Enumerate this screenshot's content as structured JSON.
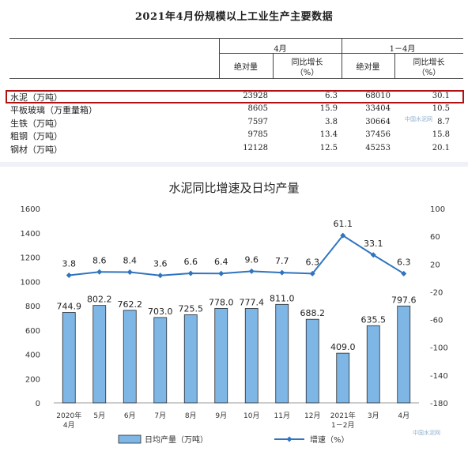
{
  "table": {
    "title": "2021年4月份规模以上工业生产主要数据",
    "group1": "4月",
    "group2": "1－4月",
    "col_abs": "绝对量",
    "col_yoy": "同比增长",
    "col_yoy_unit": "（%）",
    "rows": [
      {
        "name": "水泥（万吨）",
        "abs_apr": "23928",
        "yoy_apr": "6.3",
        "abs_ytd": "68010",
        "yoy_ytd": "30.1"
      },
      {
        "name": "平板玻璃（万重量箱）",
        "abs_apr": "8605",
        "yoy_apr": "15.9",
        "abs_ytd": "33404",
        "yoy_ytd": "10.5"
      },
      {
        "name": "生铁（万吨）",
        "abs_apr": "7597",
        "yoy_apr": "3.8",
        "abs_ytd": "30664",
        "yoy_ytd": "8.7"
      },
      {
        "name": "粗钢（万吨）",
        "abs_apr": "9785",
        "yoy_apr": "13.4",
        "abs_ytd": "37456",
        "yoy_ytd": "15.8"
      },
      {
        "name": "钢材（万吨）",
        "abs_apr": "12128",
        "yoy_apr": "12.5",
        "abs_ytd": "45253",
        "yoy_ytd": "20.1"
      }
    ]
  },
  "watermark": "中国水泥网",
  "chart_data": {
    "type": "bar",
    "title": "水泥同比增速及日均产量",
    "categories": [
      "2020年\n4月",
      "5月",
      "6月",
      "7月",
      "8月",
      "9月",
      "10月",
      "11月",
      "12月",
      "2021年\n1－2月",
      "3月",
      "4月"
    ],
    "series": [
      {
        "name": "日均产量（万吨）",
        "type": "bar",
        "axis": "left",
        "values": [
          744.9,
          802.2,
          762.2,
          703.0,
          725.5,
          778.0,
          777.4,
          811.0,
          688.2,
          409.0,
          635.5,
          797.6
        ],
        "color": "#7eb6e6"
      },
      {
        "name": "增速（%）",
        "type": "line",
        "axis": "right",
        "values": [
          3.8,
          8.6,
          8.4,
          3.6,
          6.6,
          6.4,
          9.6,
          7.7,
          6.3,
          61.1,
          33.1,
          6.3
        ],
        "color": "#2f74c0"
      }
    ],
    "left_axis": {
      "min": 0,
      "max": 1600,
      "ticks": [
        0,
        200,
        400,
        600,
        800,
        1000,
        1200,
        1400,
        1600
      ]
    },
    "right_axis": {
      "min": -180,
      "max": 100,
      "ticks": [
        -180,
        -140,
        -100,
        -60,
        -20,
        20,
        60,
        100
      ]
    },
    "bar_labels": [
      "744.9",
      "802.2",
      "762.2",
      "703.0",
      "725.5",
      "778.0",
      "777.4",
      "811.0",
      "688.2",
      "409.0",
      "635.5",
      "797.6"
    ],
    "line_labels": [
      "3.8",
      "8.6",
      "8.4",
      "3.6",
      "6.6",
      "6.4",
      "9.6",
      "7.7",
      "6.3",
      "61.1",
      "33.1",
      "6.3"
    ],
    "legend": "bottom",
    "grid": false
  }
}
